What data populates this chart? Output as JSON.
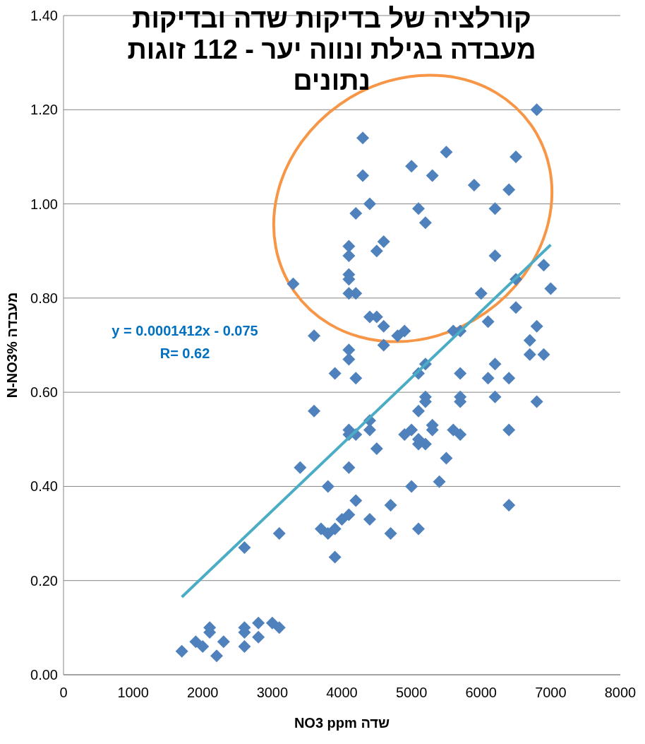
{
  "chart_data": {
    "type": "scatter",
    "title": "קורלציה של בדיקות שדה ובדיקות מעבדה בגילת ונווה יער - 112 זוגות נתונים",
    "xlabel": "שדה NO3 ppm",
    "ylabel": "מעבדה N-NO3%",
    "annotations": [
      "y = 0.0001412x - 0.075",
      "R= 0.62"
    ],
    "xlim": [
      0,
      8000
    ],
    "xticks": [
      0,
      1000,
      2000,
      3000,
      4000,
      5000,
      6000,
      7000,
      8000
    ],
    "ylim": [
      0,
      1.4
    ],
    "yticks": [
      {
        "value": 0,
        "label": "0.00"
      },
      {
        "value": 0.2,
        "label": "0.20"
      },
      {
        "value": 0.4,
        "label": "0.40"
      },
      {
        "value": 0.6,
        "label": "0.60"
      },
      {
        "value": 0.8,
        "label": "0.80"
      },
      {
        "value": 1.0,
        "label": "1.00"
      },
      {
        "value": 1.2,
        "label": "1.20"
      },
      {
        "value": 1.4,
        "label": "1.40"
      }
    ],
    "grid": "y",
    "marker": "diamond",
    "series": [
      {
        "type": "scatter",
        "color": "#4f81bd",
        "x": [
          1700,
          1900,
          2000,
          2100,
          2100,
          2200,
          2300,
          2600,
          2600,
          2600,
          2600,
          2800,
          2800,
          3000,
          3100,
          3100,
          3300,
          3400,
          3600,
          3600,
          3700,
          3800,
          3800,
          3900,
          3900,
          3900,
          4000,
          4100,
          4100,
          4100,
          4100,
          4100,
          4100,
          4100,
          4100,
          4100,
          4100,
          4100,
          4200,
          4200,
          4200,
          4200,
          4200,
          4300,
          4300,
          4400,
          4400,
          4400,
          4400,
          4400,
          4500,
          4500,
          4500,
          4600,
          4600,
          4600,
          4700,
          4700,
          4800,
          4900,
          4900,
          5000,
          5000,
          5000,
          5100,
          5100,
          5100,
          5100,
          5100,
          5100,
          5200,
          5200,
          5200,
          5200,
          5200,
          5300,
          5300,
          5300,
          5400,
          5500,
          5500,
          5600,
          5600,
          5700,
          5700,
          5700,
          5700,
          5700,
          5900,
          6000,
          6100,
          6100,
          6200,
          6200,
          6200,
          6200,
          6400,
          6400,
          6400,
          6400,
          6500,
          6500,
          6500,
          6700,
          6700,
          6800,
          6800,
          6800,
          6900,
          6900,
          7000
        ],
        "values": [
          0.05,
          0.07,
          0.06,
          0.1,
          0.09,
          0.04,
          0.07,
          0.1,
          0.09,
          0.06,
          0.27,
          0.11,
          0.08,
          0.11,
          0.1,
          0.3,
          0.83,
          0.44,
          0.72,
          0.56,
          0.31,
          0.4,
          0.3,
          0.31,
          0.25,
          0.64,
          0.33,
          0.34,
          0.44,
          0.51,
          0.52,
          0.67,
          0.69,
          0.81,
          0.84,
          0.85,
          0.89,
          0.91,
          0.37,
          0.51,
          0.63,
          0.81,
          0.98,
          1.06,
          1.14,
          1.0,
          0.76,
          0.54,
          0.52,
          0.33,
          0.48,
          0.76,
          0.9,
          0.92,
          0.74,
          0.7,
          0.36,
          0.3,
          0.72,
          0.73,
          0.51,
          1.08,
          0.52,
          0.4,
          0.99,
          0.64,
          0.56,
          0.5,
          0.49,
          0.31,
          0.96,
          0.66,
          0.59,
          0.58,
          0.49,
          1.06,
          0.53,
          0.52,
          0.41,
          1.11,
          0.46,
          0.73,
          0.52,
          0.73,
          0.64,
          0.59,
          0.58,
          0.51,
          1.04,
          0.81,
          0.75,
          0.63,
          0.99,
          0.89,
          0.66,
          0.59,
          1.03,
          0.63,
          0.52,
          0.36,
          1.1,
          0.84,
          0.78,
          0.71,
          0.68,
          1.2,
          0.74,
          0.58,
          0.87,
          0.68,
          0.82
        ]
      },
      {
        "type": "line",
        "color": "#4bacc6",
        "marker": "none",
        "x": [
          1700,
          7000
        ],
        "values": [
          0.165,
          0.913
        ]
      }
    ]
  }
}
